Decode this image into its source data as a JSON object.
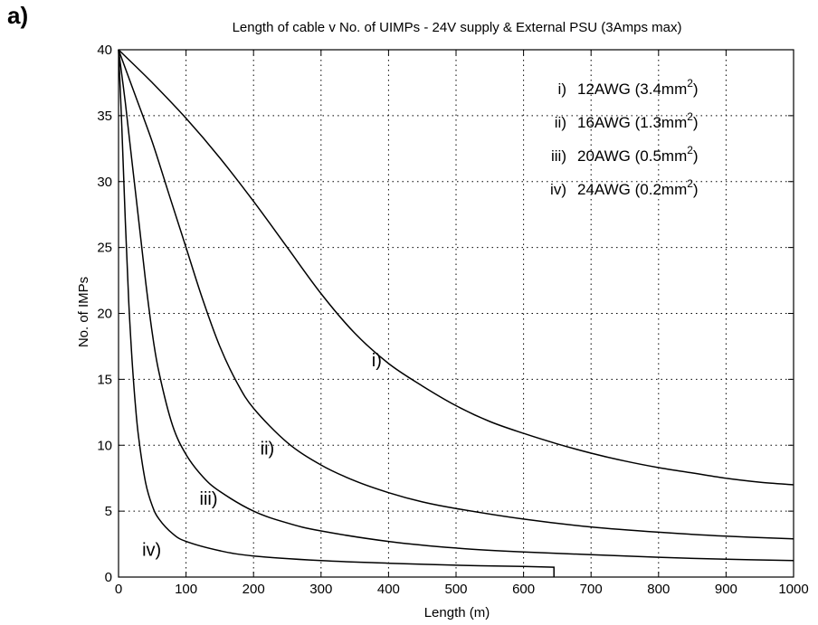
{
  "panel_label": "a)",
  "chart_data": {
    "type": "line",
    "title": "Length of cable v No. of UIMPs  -  24V supply & External PSU (3Amps max)",
    "xlabel": "Length (m)",
    "ylabel": "No. of IMPs",
    "xlim": [
      0,
      1000
    ],
    "ylim": [
      0,
      40
    ],
    "xticks": [
      0,
      100,
      200,
      300,
      400,
      500,
      600,
      700,
      800,
      900,
      1000
    ],
    "yticks": [
      0,
      5,
      10,
      15,
      20,
      25,
      30,
      35,
      40
    ],
    "grid": true,
    "legend_position": "top-right",
    "legend": [
      {
        "roman": "i)",
        "gauge": "12AWG",
        "area": "(3.4mm",
        "sup": "2",
        "close": ")"
      },
      {
        "roman": "ii)",
        "gauge": "16AWG",
        "area": "(1.3mm",
        "sup": "2",
        "close": ")"
      },
      {
        "roman": "iii)",
        "gauge": "20AWG",
        "area": "(0.5mm",
        "sup": "2",
        "close": ")"
      },
      {
        "roman": "iv)",
        "gauge": "24AWG",
        "area": "(0.2mm",
        "sup": "2",
        "close": ")"
      }
    ],
    "series": [
      {
        "label": "i)",
        "label_at": [
          375,
          16
        ],
        "x": [
          0,
          50,
          100,
          150,
          200,
          250,
          300,
          350,
          400,
          450,
          500,
          550,
          600,
          650,
          700,
          750,
          800,
          850,
          900,
          950,
          1000
        ],
        "y": [
          40,
          37.5,
          34.8,
          31.8,
          28.5,
          25,
          21.5,
          18.5,
          16.2,
          14.5,
          13,
          11.8,
          10.9,
          10.1,
          9.4,
          8.8,
          8.3,
          7.9,
          7.5,
          7.2,
          7.0
        ]
      },
      {
        "label": "ii)",
        "label_at": [
          210,
          9.3
        ],
        "x": [
          0,
          25,
          50,
          75,
          100,
          125,
          150,
          175,
          200,
          250,
          300,
          350,
          400,
          450,
          500,
          600,
          700,
          800,
          900,
          1000
        ],
        "y": [
          40,
          36.5,
          33,
          29,
          25,
          21,
          17.5,
          14.8,
          12.8,
          10.2,
          8.5,
          7.3,
          6.4,
          5.7,
          5.2,
          4.4,
          3.8,
          3.4,
          3.1,
          2.9
        ]
      },
      {
        "label": "iii)",
        "label_at": [
          120,
          5.5
        ],
        "x": [
          0,
          10,
          20,
          30,
          40,
          50,
          60,
          80,
          100,
          125,
          150,
          200,
          250,
          300,
          400,
          500,
          600,
          700,
          800,
          900,
          1000
        ],
        "y": [
          40,
          36,
          31.5,
          27,
          22.5,
          18.5,
          15.5,
          11.5,
          9.3,
          7.6,
          6.5,
          5.0,
          4.1,
          3.5,
          2.7,
          2.2,
          1.9,
          1.7,
          1.5,
          1.35,
          1.25
        ]
      },
      {
        "label": "iv)",
        "label_at": [
          35,
          1.6
        ],
        "x": [
          0,
          5,
          10,
          15,
          20,
          25,
          30,
          40,
          50,
          60,
          80,
          100,
          150,
          200,
          300,
          400,
          500,
          600,
          645,
          645
        ],
        "y": [
          40,
          34,
          27,
          21,
          16.5,
          13,
          10.5,
          7.2,
          5.4,
          4.4,
          3.3,
          2.7,
          2.0,
          1.6,
          1.25,
          1.05,
          0.9,
          0.8,
          0.75,
          0
        ]
      }
    ]
  }
}
